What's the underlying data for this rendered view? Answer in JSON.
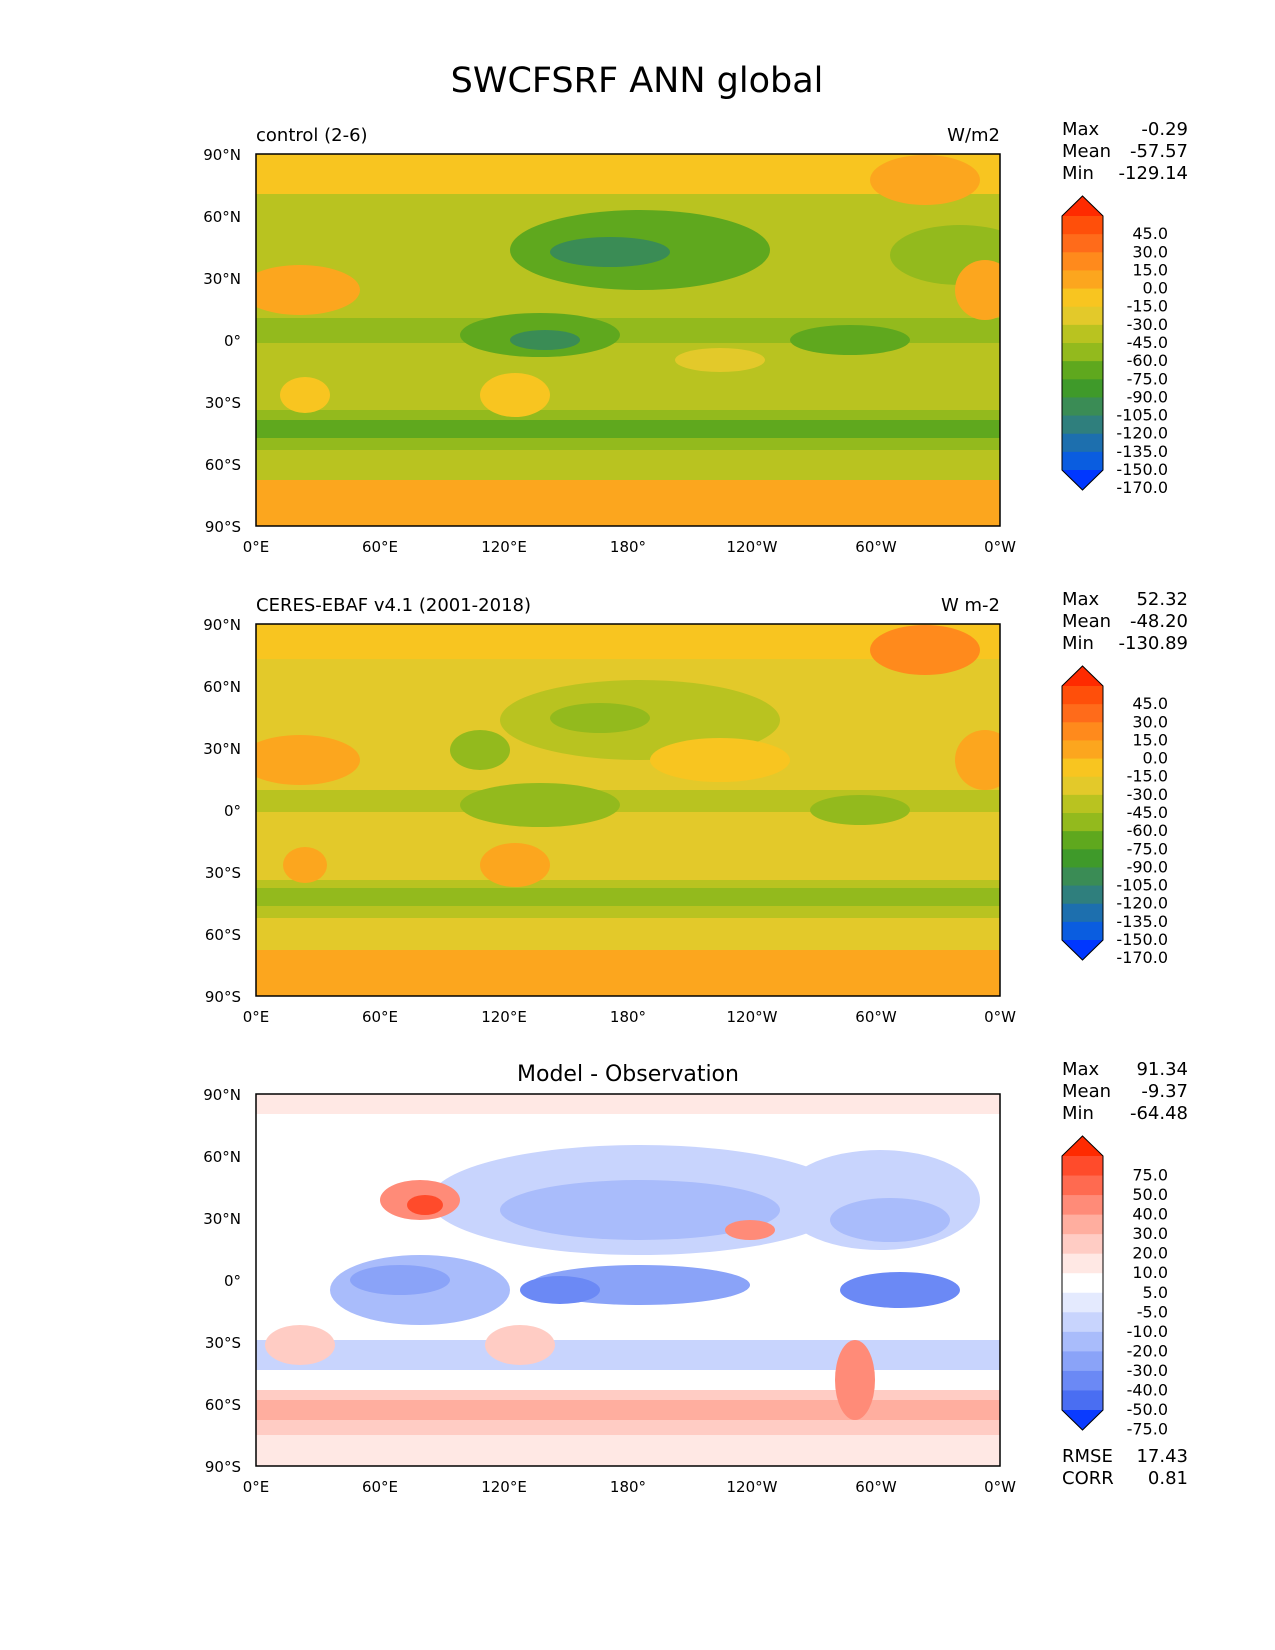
{
  "title": "SWCFSRF ANN global",
  "axes": {
    "lat_labels": [
      "90°N",
      "60°N",
      "30°N",
      "0°",
      "30°S",
      "60°S",
      "90°S"
    ],
    "lon_labels": [
      "0°E",
      "60°E",
      "120°E",
      "180°",
      "120°W",
      "60°W",
      "0°W"
    ]
  },
  "panels": [
    {
      "left_title": "control (2-6)",
      "center_title": "",
      "units": "W/m2",
      "stats": {
        "max_label": "Max",
        "max": "-0.29",
        "mean_label": "Mean",
        "mean": "-57.57",
        "min_label": "Min",
        "min": "-129.14"
      },
      "colorbar": {
        "labels": [
          "45.0",
          "30.0",
          "15.0",
          "0.0",
          "-15.0",
          "-30.0",
          "-45.0",
          "-60.0",
          "-75.0",
          "-90.0",
          "-105.0",
          "-120.0",
          "-135.0",
          "-150.0",
          "-170.0"
        ],
        "colors": [
          "#ff2a00",
          "#ff4f0a",
          "#ff6b1a",
          "#ff8a1c",
          "#fca61e",
          "#f8c520",
          "#e3c92a",
          "#b9c320",
          "#93ba1d",
          "#5fa81e",
          "#3f9a2a",
          "#3a8c55",
          "#2f7f7d",
          "#1d6fae",
          "#0a5de0",
          "#0037ff"
        ]
      },
      "palette": {
        "land_hot": "#fca61e",
        "cold": "#3a8c55"
      }
    },
    {
      "left_title": "CERES-EBAF v4.1 (2001-2018)",
      "center_title": "",
      "units": "W m-2",
      "stats": {
        "max_label": "Max",
        "max": "52.32",
        "mean_label": "Mean",
        "mean": "-48.20",
        "min_label": "Min",
        "min": "-130.89"
      },
      "colorbar": {
        "labels": [
          "45.0",
          "30.0",
          "15.0",
          "0.0",
          "-15.0",
          "-30.0",
          "-45.0",
          "-60.0",
          "-75.0",
          "-90.0",
          "-105.0",
          "-120.0",
          "-135.0",
          "-150.0",
          "-170.0"
        ],
        "colors": [
          "#ff2a00",
          "#ff4f0a",
          "#ff6b1a",
          "#ff8a1c",
          "#fca61e",
          "#f8c520",
          "#e3c92a",
          "#b9c320",
          "#93ba1d",
          "#5fa81e",
          "#3f9a2a",
          "#3a8c55",
          "#2f7f7d",
          "#1d6fae",
          "#0a5de0",
          "#0037ff"
        ]
      },
      "palette": {
        "land_hot": "#fca61e",
        "cold": "#5fa81e"
      }
    },
    {
      "left_title": "",
      "center_title": "Model - Observation",
      "units": "",
      "stats": {
        "max_label": "Max",
        "max": "91.34",
        "mean_label": "Mean",
        "mean": "-9.37",
        "min_label": "Min",
        "min": "-64.48"
      },
      "colorbar": {
        "labels": [
          "75.0",
          "50.0",
          "40.0",
          "30.0",
          "20.0",
          "10.0",
          "5.0",
          "-5.0",
          "-10.0",
          "-20.0",
          "-30.0",
          "-40.0",
          "-50.0",
          "-75.0"
        ],
        "colors": [
          "#ff2a00",
          "#ff4b2b",
          "#ff6a50",
          "#ff8b78",
          "#ffae9f",
          "#ffccc4",
          "#ffe8e4",
          "#ffffff",
          "#e4eafe",
          "#c8d4fd",
          "#a9bcfb",
          "#8aa3f8",
          "#6b89f5",
          "#4a6ef2",
          "#0a3bff"
        ]
      },
      "extra_stats": {
        "rmse_label": "RMSE",
        "rmse": "17.43",
        "corr_label": "CORR",
        "corr": "0.81"
      },
      "palette": {
        "base": "#ffffff"
      }
    }
  ]
}
